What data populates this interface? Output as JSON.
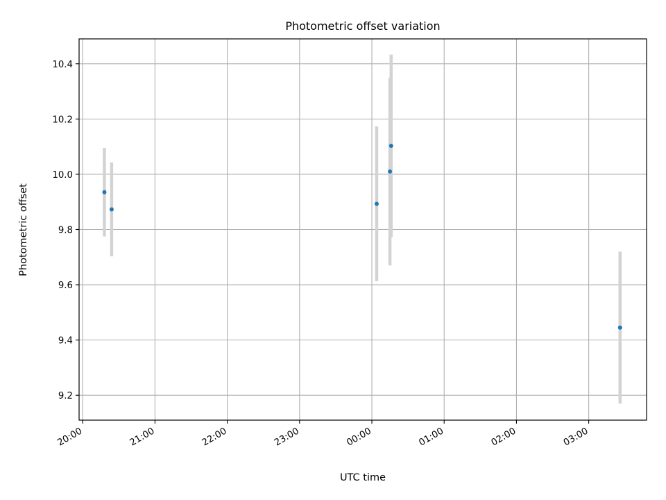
{
  "chart_data": {
    "type": "scatter",
    "title": "Photometric offset variation",
    "xlabel": "UTC time",
    "ylabel": "Photometric offset",
    "x_ticks": [
      "20:00",
      "21:00",
      "22:00",
      "23:00",
      "00:00",
      "01:00",
      "02:00",
      "03:00"
    ],
    "y_ticks": [
      "9.2",
      "9.4",
      "9.6",
      "9.8",
      "10.0",
      "10.2",
      "10.4"
    ],
    "xlim": [
      "19:57",
      "03:48"
    ],
    "ylim": [
      9.11,
      10.49
    ],
    "grid": true,
    "colors": {
      "point": "#1f77b4",
      "errorbar": "#d3d3d3",
      "grid": "#b0b0b0"
    },
    "points": [
      {
        "time": "20:18",
        "y": 9.935,
        "yerr": 0.16
      },
      {
        "time": "20:24",
        "y": 9.873,
        "yerr": 0.17
      },
      {
        "time": "00:04",
        "y": 9.893,
        "yerr": 0.28
      },
      {
        "time": "00:15",
        "y": 10.01,
        "yerr": 0.34
      },
      {
        "time": "00:16",
        "y": 10.103,
        "yerr": 0.33
      },
      {
        "time": "03:26",
        "y": 9.445,
        "yerr": 0.275
      }
    ]
  }
}
